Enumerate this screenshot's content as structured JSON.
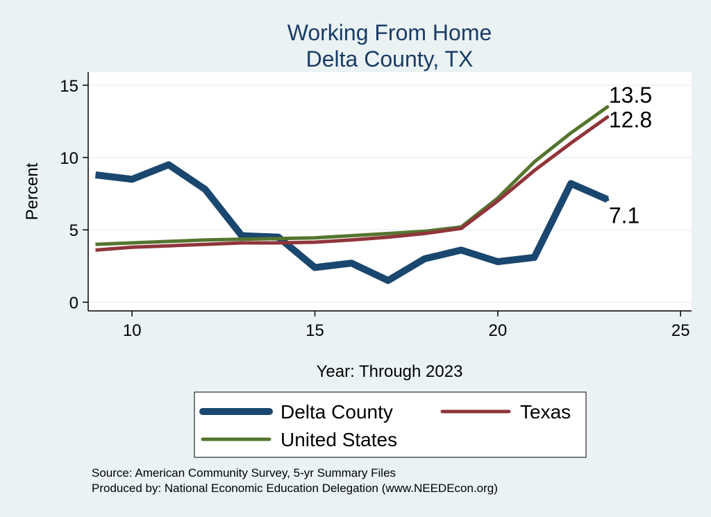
{
  "chart_data": {
    "type": "line",
    "title": "Working From Home",
    "subtitle": "Delta County, TX",
    "xlabel": "Year: Through 2023",
    "ylabel": "Percent",
    "xlim": [
      8.8,
      25.3
    ],
    "ylim": [
      -0.6,
      15.9
    ],
    "xticks": [
      10,
      15,
      20,
      25
    ],
    "yticks": [
      0,
      5,
      10,
      15
    ],
    "grid": true,
    "legend_position": "bottom",
    "series": [
      {
        "name": "Delta County",
        "color": "#1a476f",
        "x": [
          9,
          10,
          11,
          12,
          13,
          14,
          15,
          16,
          17,
          18,
          19,
          20,
          21,
          22,
          23
        ],
        "values": [
          8.8,
          8.5,
          9.5,
          7.8,
          4.6,
          4.5,
          2.4,
          2.7,
          1.5,
          3.0,
          3.6,
          2.8,
          3.1,
          8.2,
          7.1
        ],
        "end_label": "7.1"
      },
      {
        "name": "Texas",
        "color": "#90353b",
        "x": [
          9,
          10,
          11,
          12,
          13,
          14,
          15,
          16,
          17,
          18,
          19,
          20,
          21,
          22,
          23
        ],
        "values": [
          3.6,
          3.8,
          3.9,
          4.0,
          4.1,
          4.1,
          4.15,
          4.3,
          4.5,
          4.75,
          5.1,
          7.0,
          9.1,
          11.0,
          12.8
        ],
        "end_label": "12.8"
      },
      {
        "name": "United States",
        "color": "#55752f",
        "x": [
          9,
          10,
          11,
          12,
          13,
          14,
          15,
          16,
          17,
          18,
          19,
          20,
          21,
          22,
          23
        ],
        "values": [
          4.0,
          4.1,
          4.2,
          4.3,
          4.35,
          4.4,
          4.45,
          4.6,
          4.75,
          4.9,
          5.2,
          7.2,
          9.7,
          11.7,
          13.5
        ],
        "end_label": "13.5"
      }
    ],
    "source_note": "Source: American Community Survey, 5-yr Summary Files",
    "producer_note": "Produced by: National Economic Education Delegation (www.NEEDEcon.org)"
  }
}
